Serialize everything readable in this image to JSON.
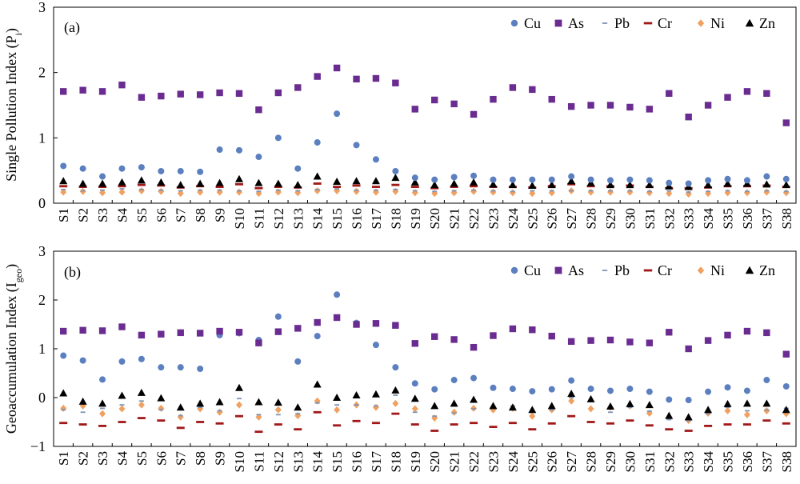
{
  "chart_data": [
    {
      "type": "scatter",
      "panel_label": "(a)",
      "ylabel": "Single Pollution Index (P",
      "ylabel_sub": "i",
      "ylabel_close": ")",
      "ylim": [
        0,
        3
      ],
      "yticks": [
        "0",
        "1",
        "2",
        "3"
      ],
      "categories": [
        "S1",
        "S2",
        "S3",
        "S4",
        "S5",
        "S6",
        "S7",
        "S8",
        "S9",
        "S10",
        "S11",
        "S12",
        "S13",
        "S14",
        "S15",
        "S16",
        "S17",
        "S18",
        "S19",
        "S20",
        "S21",
        "S22",
        "S23",
        "S24",
        "S25",
        "S26",
        "S27",
        "S28",
        "S29",
        "S30",
        "S31",
        "S32",
        "S33",
        "S34",
        "S35",
        "S36",
        "S37",
        "S38"
      ],
      "legend_position": "top-right",
      "series": [
        {
          "name": "Cu",
          "color": "#5b7fbf",
          "marker": "circle",
          "values": [
            0.57,
            0.53,
            0.41,
            0.53,
            0.55,
            0.49,
            0.49,
            0.48,
            0.82,
            0.81,
            0.71,
            1.0,
            0.53,
            0.93,
            1.37,
            0.89,
            0.67,
            0.49,
            0.39,
            0.36,
            0.4,
            0.42,
            0.36,
            0.36,
            0.36,
            0.36,
            0.41,
            0.36,
            0.35,
            0.36,
            0.35,
            0.31,
            0.3,
            0.35,
            0.37,
            0.35,
            0.41,
            0.37
          ]
        },
        {
          "name": "As",
          "color": "#6a2c91",
          "marker": "square",
          "values": [
            1.71,
            1.73,
            1.71,
            1.81,
            1.62,
            1.64,
            1.67,
            1.66,
            1.69,
            1.68,
            1.43,
            1.69,
            1.77,
            1.94,
            2.07,
            1.9,
            1.91,
            1.84,
            1.44,
            1.58,
            1.52,
            1.36,
            1.59,
            1.77,
            1.74,
            1.59,
            1.48,
            1.5,
            1.5,
            1.47,
            1.44,
            1.68,
            1.32,
            1.5,
            1.62,
            1.71,
            1.68,
            1.23
          ]
        },
        {
          "name": "Pb",
          "color": "#7f93b3",
          "marker": "dash",
          "values": [
            0.21,
            0.19,
            0.2,
            0.22,
            0.21,
            0.2,
            0.19,
            0.2,
            0.2,
            0.19,
            0.18,
            0.2,
            0.19,
            0.21,
            0.22,
            0.2,
            0.2,
            0.21,
            0.19,
            0.18,
            0.19,
            0.2,
            0.19,
            0.18,
            0.19,
            0.19,
            0.19,
            0.19,
            0.19,
            0.19,
            0.18,
            0.19,
            0.17,
            0.18,
            0.19,
            0.18,
            0.19,
            0.18
          ]
        },
        {
          "name": "Cr",
          "color": "#a01818",
          "marker": "bar",
          "values": [
            0.26,
            0.25,
            0.25,
            0.26,
            0.28,
            0.27,
            0.24,
            0.26,
            0.25,
            0.29,
            0.23,
            0.25,
            0.24,
            0.3,
            0.25,
            0.27,
            0.25,
            0.28,
            0.25,
            0.23,
            0.25,
            0.26,
            0.25,
            0.25,
            0.24,
            0.26,
            0.29,
            0.26,
            0.26,
            0.27,
            0.25,
            0.23,
            0.23,
            0.24,
            0.26,
            0.26,
            0.27,
            0.25
          ]
        },
        {
          "name": "Ni",
          "color": "#f0a060",
          "marker": "diamond",
          "values": [
            0.17,
            0.18,
            0.16,
            0.17,
            0.19,
            0.18,
            0.15,
            0.17,
            0.17,
            0.17,
            0.15,
            0.17,
            0.16,
            0.19,
            0.19,
            0.18,
            0.17,
            0.18,
            0.16,
            0.15,
            0.16,
            0.18,
            0.17,
            0.16,
            0.15,
            0.16,
            0.19,
            0.17,
            0.17,
            0.17,
            0.16,
            0.15,
            0.14,
            0.15,
            0.16,
            0.16,
            0.17,
            0.16
          ]
        },
        {
          "name": "Zn",
          "color": "#000000",
          "marker": "triangle",
          "values": [
            0.34,
            0.3,
            0.3,
            0.32,
            0.35,
            0.32,
            0.28,
            0.3,
            0.31,
            0.37,
            0.31,
            0.3,
            0.28,
            0.41,
            0.33,
            0.34,
            0.34,
            0.39,
            0.32,
            0.28,
            0.3,
            0.32,
            0.29,
            0.28,
            0.27,
            0.28,
            0.34,
            0.31,
            0.28,
            0.28,
            0.28,
            0.26,
            0.25,
            0.28,
            0.3,
            0.3,
            0.29,
            0.28
          ]
        }
      ]
    },
    {
      "type": "scatter",
      "panel_label": "(b)",
      "ylabel": "Geoaccumulation Index (I",
      "ylabel_sub": "geo",
      "ylabel_close": ")",
      "ylim": [
        -1,
        3
      ],
      "yticks": [
        "−1",
        "0",
        "1",
        "2",
        "3"
      ],
      "categories": [
        "S1",
        "S2",
        "S3",
        "S4",
        "S5",
        "S6",
        "S7",
        "S8",
        "S9",
        "S10",
        "S11",
        "S12",
        "S13",
        "S14",
        "S15",
        "S16",
        "S17",
        "S18",
        "S19",
        "S20",
        "S21",
        "S22",
        "S23",
        "S24",
        "S25",
        "S26",
        "S27",
        "S28",
        "S29",
        "S30",
        "S31",
        "S32",
        "S33",
        "S34",
        "S35",
        "S36",
        "S37",
        "S38"
      ],
      "legend_position": "top-right",
      "series": [
        {
          "name": "Cu",
          "color": "#5b7fbf",
          "marker": "circle",
          "values": [
            0.86,
            0.76,
            0.37,
            0.74,
            0.79,
            0.62,
            0.62,
            0.59,
            1.28,
            1.32,
            1.18,
            1.66,
            0.74,
            1.26,
            2.11,
            1.53,
            1.08,
            0.62,
            0.29,
            0.17,
            0.36,
            0.4,
            0.2,
            0.18,
            0.13,
            0.17,
            0.35,
            0.18,
            0.14,
            0.18,
            0.12,
            -0.04,
            -0.05,
            0.12,
            0.21,
            0.14,
            0.36,
            0.23
          ]
        },
        {
          "name": "As",
          "color": "#6a2c91",
          "marker": "square",
          "values": [
            1.36,
            1.38,
            1.37,
            1.45,
            1.28,
            1.3,
            1.33,
            1.32,
            1.36,
            1.34,
            1.12,
            1.35,
            1.42,
            1.54,
            1.64,
            1.5,
            1.52,
            1.48,
            1.11,
            1.25,
            1.19,
            1.03,
            1.27,
            1.41,
            1.39,
            1.26,
            1.15,
            1.17,
            1.18,
            1.14,
            1.12,
            1.34,
            1.0,
            1.17,
            1.28,
            1.36,
            1.33,
            0.89
          ]
        },
        {
          "name": "Pb",
          "color": "#7f93b3",
          "marker": "dash",
          "values": [
            -0.25,
            -0.3,
            -0.22,
            -0.15,
            -0.07,
            -0.25,
            -0.37,
            -0.2,
            -0.27,
            -0.02,
            -0.35,
            -0.35,
            -0.33,
            -0.11,
            -0.15,
            -0.15,
            -0.17,
            0.05,
            -0.3,
            -0.38,
            -0.32,
            -0.23,
            -0.2,
            -0.17,
            -0.3,
            -0.25,
            0.0,
            -0.08,
            -0.3,
            -0.2,
            -0.28,
            -0.45,
            -0.47,
            -0.33,
            -0.2,
            -0.27,
            -0.25,
            -0.22
          ]
        },
        {
          "name": "Cr",
          "color": "#a01818",
          "marker": "bar",
          "values": [
            -0.52,
            -0.55,
            -0.58,
            -0.5,
            -0.42,
            -0.47,
            -0.62,
            -0.5,
            -0.53,
            -0.38,
            -0.7,
            -0.55,
            -0.65,
            -0.3,
            -0.57,
            -0.48,
            -0.52,
            -0.33,
            -0.55,
            -0.68,
            -0.55,
            -0.52,
            -0.6,
            -0.52,
            -0.65,
            -0.53,
            -0.38,
            -0.5,
            -0.53,
            -0.47,
            -0.57,
            -0.65,
            -0.68,
            -0.58,
            -0.55,
            -0.55,
            -0.47,
            -0.53
          ]
        },
        {
          "name": "Ni",
          "color": "#f0a060",
          "marker": "diamond",
          "values": [
            -0.22,
            -0.17,
            -0.33,
            -0.23,
            -0.15,
            -0.22,
            -0.4,
            -0.23,
            -0.3,
            -0.15,
            -0.4,
            -0.25,
            -0.37,
            -0.07,
            -0.25,
            -0.15,
            -0.2,
            -0.12,
            -0.23,
            -0.42,
            -0.3,
            -0.22,
            -0.25,
            -0.22,
            -0.38,
            -0.25,
            -0.07,
            -0.23,
            -0.2,
            -0.17,
            -0.32,
            -0.4,
            -0.47,
            -0.32,
            -0.27,
            -0.35,
            -0.27,
            -0.33
          ]
        },
        {
          "name": "Zn",
          "color": "#000000",
          "marker": "triangle",
          "values": [
            0.09,
            -0.08,
            -0.12,
            0.04,
            0.1,
            -0.01,
            -0.2,
            -0.12,
            -0.09,
            0.2,
            -0.09,
            -0.1,
            -0.2,
            0.27,
            0.0,
            0.05,
            0.07,
            0.15,
            -0.02,
            -0.17,
            -0.12,
            -0.04,
            -0.17,
            -0.2,
            -0.25,
            -0.17,
            0.08,
            -0.03,
            -0.18,
            -0.13,
            -0.15,
            -0.37,
            -0.4,
            -0.25,
            -0.13,
            -0.12,
            -0.12,
            -0.25
          ]
        }
      ]
    }
  ]
}
